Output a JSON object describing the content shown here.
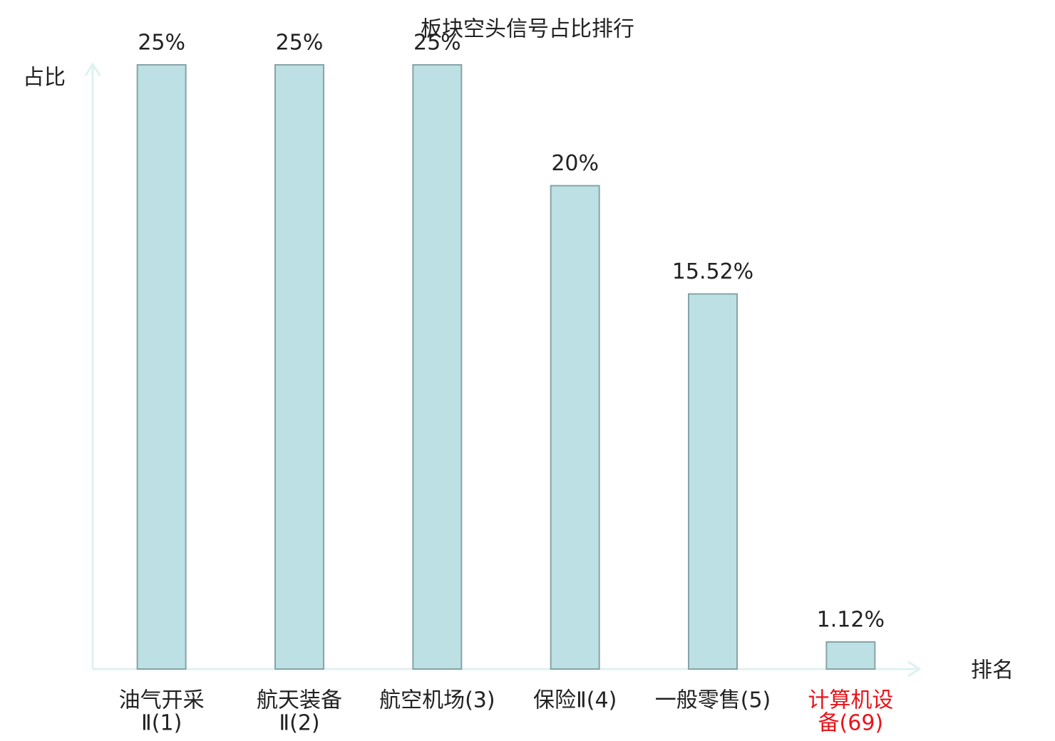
{
  "chart_data": {
    "type": "bar",
    "title": "板块空头信号占比排行",
    "y_label": "占比",
    "x_label": "排名",
    "categories": [
      [
        "油气开采",
        "Ⅱ(1)"
      ],
      [
        "航天装备",
        "Ⅱ(2)"
      ],
      [
        "航空机场(3)"
      ],
      [
        "保险Ⅱ(4)"
      ],
      [
        "一般零售(5)"
      ],
      [
        "计算机设",
        "备(69)"
      ]
    ],
    "label_colors": [
      "#222222",
      "#222222",
      "#222222",
      "#222222",
      "#222222",
      "#e8141a"
    ],
    "values": [
      25,
      25,
      25,
      20,
      15.52,
      1.12
    ],
    "value_labels": [
      "25%",
      "25%",
      "25%",
      "20%",
      "15.52%",
      "1.12%"
    ],
    "color": "#bce0e3",
    "edge_color": "#86a4a8",
    "axis_color": "#def2ef",
    "ylim": [
      0,
      25
    ]
  }
}
